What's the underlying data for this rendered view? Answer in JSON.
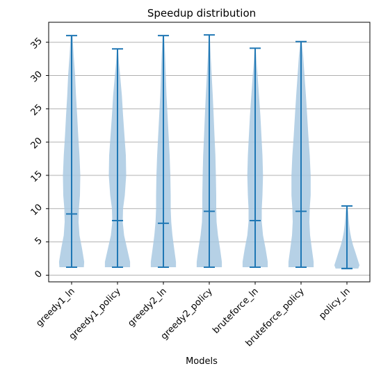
{
  "chart_data": {
    "type": "violin",
    "title": "Speedup distribution",
    "xlabel": "Models",
    "ylabel": "",
    "ylim": [
      -1,
      38
    ],
    "yticks": [
      0,
      5,
      10,
      15,
      20,
      25,
      30,
      35
    ],
    "grid": "horizontal",
    "categories": [
      "greedy1_ln",
      "greedy1_policy",
      "greedy2_ln",
      "greedy2_policy",
      "bruteforce_ln",
      "bruteforce_policy",
      "policy_ln"
    ],
    "series": [
      {
        "category": "greedy1_ln",
        "min": 1.2,
        "max": 36.0,
        "median": 9.2,
        "density_y": [
          1.2,
          2,
          4,
          6,
          8,
          10,
          12,
          15,
          18,
          21,
          24,
          27,
          30,
          33,
          36
        ],
        "density_w": [
          0.7,
          0.72,
          0.6,
          0.45,
          0.4,
          0.42,
          0.48,
          0.5,
          0.45,
          0.38,
          0.32,
          0.25,
          0.2,
          0.12,
          0.05
        ]
      },
      {
        "category": "greedy1_policy",
        "min": 1.2,
        "max": 34.0,
        "median": 8.2,
        "density_y": [
          1.2,
          2,
          4,
          6,
          8,
          10,
          12,
          15,
          18,
          21,
          24,
          27,
          30,
          32,
          34
        ],
        "density_w": [
          0.72,
          0.72,
          0.55,
          0.38,
          0.3,
          0.32,
          0.42,
          0.5,
          0.48,
          0.4,
          0.32,
          0.25,
          0.15,
          0.08,
          0.03
        ]
      },
      {
        "category": "greedy2_ln",
        "min": 1.2,
        "max": 36.0,
        "median": 7.8,
        "density_y": [
          1.2,
          2,
          4,
          6,
          8,
          10,
          12,
          15,
          18,
          21,
          24,
          27,
          30,
          33,
          36
        ],
        "density_w": [
          0.72,
          0.72,
          0.62,
          0.52,
          0.45,
          0.42,
          0.42,
          0.4,
          0.36,
          0.3,
          0.24,
          0.18,
          0.14,
          0.1,
          0.04
        ]
      },
      {
        "category": "greedy2_policy",
        "min": 1.2,
        "max": 36.1,
        "median": 9.6,
        "density_y": [
          1.2,
          2,
          4,
          6,
          8,
          10,
          12,
          15,
          18,
          21,
          24,
          27,
          30,
          33,
          36.1
        ],
        "density_w": [
          0.72,
          0.72,
          0.62,
          0.5,
          0.42,
          0.4,
          0.4,
          0.38,
          0.35,
          0.3,
          0.25,
          0.2,
          0.14,
          0.08,
          0.03
        ]
      },
      {
        "category": "bruteforce_ln",
        "min": 1.2,
        "max": 34.1,
        "median": 8.2,
        "density_y": [
          1.2,
          2,
          4,
          6,
          8,
          10,
          12,
          15,
          18,
          21,
          24,
          27,
          30,
          32,
          34.1
        ],
        "density_w": [
          0.72,
          0.72,
          0.6,
          0.45,
          0.38,
          0.38,
          0.42,
          0.45,
          0.42,
          0.36,
          0.3,
          0.22,
          0.14,
          0.08,
          0.03
        ]
      },
      {
        "category": "bruteforce_policy",
        "min": 1.2,
        "max": 35.1,
        "median": 9.6,
        "density_y": [
          1.2,
          2,
          4,
          6,
          8,
          10,
          12,
          15,
          18,
          21,
          24,
          27,
          30,
          33,
          35.1
        ],
        "density_w": [
          0.72,
          0.72,
          0.62,
          0.52,
          0.48,
          0.5,
          0.55,
          0.55,
          0.5,
          0.42,
          0.35,
          0.28,
          0.2,
          0.12,
          0.04
        ]
      },
      {
        "category": "policy_ln",
        "min": 1.0,
        "max": 10.4,
        "median": 1.0,
        "density_y": [
          1.0,
          1.5,
          2.5,
          3.5,
          4.5,
          5.5,
          6.5,
          7.5,
          8.5,
          9.5,
          10.4
        ],
        "density_w": [
          0.65,
          0.72,
          0.6,
          0.48,
          0.35,
          0.25,
          0.18,
          0.13,
          0.1,
          0.07,
          0.03
        ]
      }
    ],
    "colors": {
      "body": "#a9c9e2",
      "lines": "#1f77b4",
      "grid": "#b0b0b0",
      "axes": "#000000"
    }
  }
}
